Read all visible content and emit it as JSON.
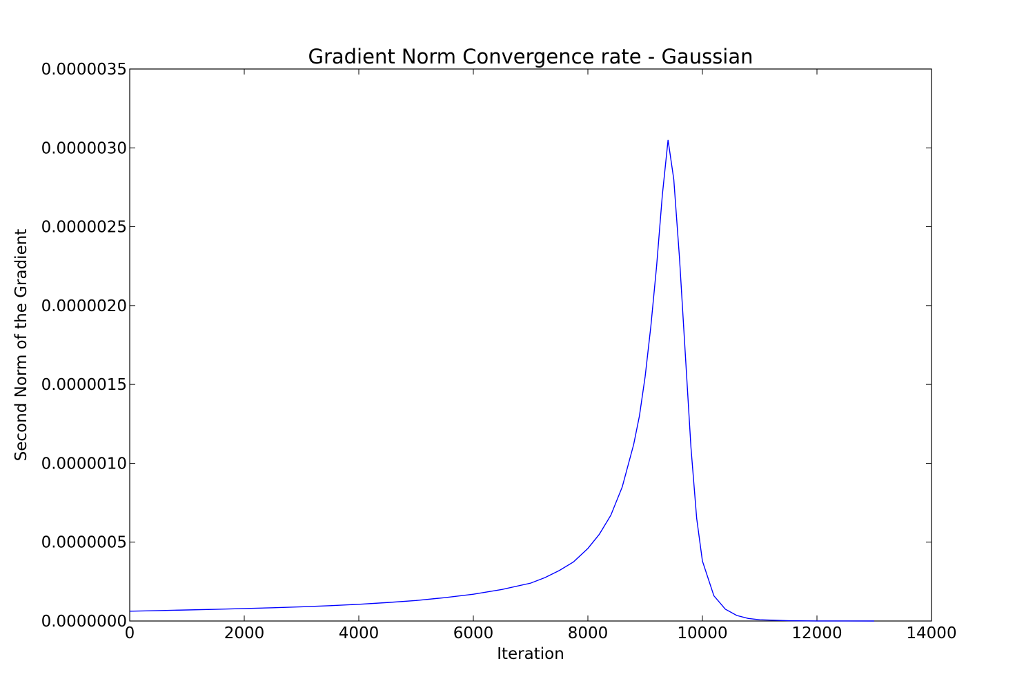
{
  "chart_data": {
    "type": "line",
    "title": "Gradient Norm Convergence rate - Gaussian",
    "xlabel": "Iteration",
    "ylabel": "Second Norm of the Gradient",
    "xlim": [
      0,
      14000
    ],
    "ylim": [
      0,
      3.5e-06
    ],
    "grid": false,
    "x_ticks": [
      0,
      2000,
      4000,
      6000,
      8000,
      10000,
      12000,
      14000
    ],
    "x_tick_labels": [
      "0",
      "2000",
      "4000",
      "6000",
      "8000",
      "10000",
      "12000",
      "14000"
    ],
    "y_ticks": [
      0,
      5e-07,
      1e-06,
      1.5e-06,
      2e-06,
      2.5e-06,
      3e-06,
      3.5e-06
    ],
    "y_tick_labels": [
      "0.0000000",
      "0.0000005",
      "0.0000010",
      "0.0000015",
      "0.0000020",
      "0.0000025",
      "0.0000030",
      "0.0000035"
    ],
    "series": [
      {
        "color": "#0000ff",
        "x": [
          0,
          500,
          1000,
          1500,
          2000,
          2500,
          3000,
          3500,
          4000,
          4500,
          5000,
          5500,
          6000,
          6500,
          7000,
          7250,
          7500,
          7750,
          8000,
          8200,
          8400,
          8600,
          8800,
          8900,
          9000,
          9100,
          9200,
          9300,
          9400,
          9500,
          9600,
          9700,
          9800,
          9900,
          10000,
          10200,
          10400,
          10600,
          10800,
          11000,
          11500,
          12000,
          12500,
          13000
        ],
        "y": [
          6.2e-08,
          6.6e-08,
          7e-08,
          7.4e-08,
          7.9e-08,
          8.4e-08,
          9e-08,
          9.7e-08,
          1.06e-07,
          1.17e-07,
          1.3e-07,
          1.48e-07,
          1.7e-07,
          2e-07,
          2.4e-07,
          2.75e-07,
          3.2e-07,
          3.75e-07,
          4.6e-07,
          5.5e-07,
          6.7e-07,
          8.5e-07,
          1.12e-06,
          1.3e-06,
          1.55e-06,
          1.87e-06,
          2.25e-06,
          2.7e-06,
          3.05e-06,
          2.8e-06,
          2.3e-06,
          1.7e-06,
          1.1e-06,
          6.5e-07,
          3.8e-07,
          1.6e-07,
          7.5e-08,
          3.5e-08,
          1.6e-08,
          8e-09,
          2e-09,
          5e-10,
          1e-10,
          0.0
        ]
      }
    ]
  }
}
